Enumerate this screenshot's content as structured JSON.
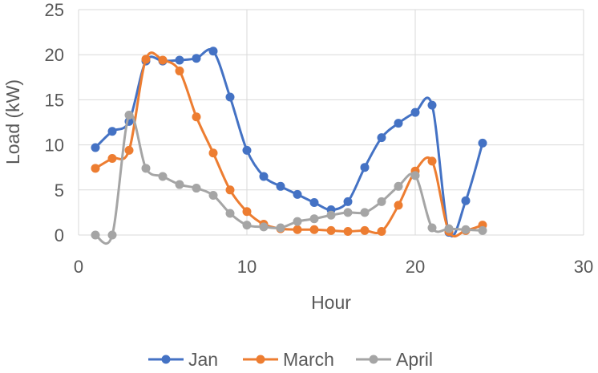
{
  "chart_data": {
    "type": "line",
    "xlabel": "Hour",
    "ylabel": "Load (kW)",
    "xlim": [
      0,
      30
    ],
    "ylim": [
      0,
      25
    ],
    "xticks": [
      0,
      10,
      20,
      30
    ],
    "yticks": [
      0,
      5,
      10,
      15,
      20,
      25
    ],
    "grid": true,
    "legend_position": "bottom",
    "series": [
      {
        "name": "Jan",
        "color": "#4472C4",
        "x": [
          1,
          2,
          3,
          4,
          5,
          6,
          7,
          8,
          9,
          10,
          11,
          12,
          13,
          14,
          15,
          16,
          17,
          18,
          19,
          20,
          21,
          22,
          23,
          24
        ],
        "y": [
          9.7,
          11.5,
          12.6,
          19.3,
          19.3,
          19.4,
          19.6,
          20.4,
          15.3,
          9.4,
          6.5,
          5.4,
          4.5,
          3.6,
          2.8,
          3.7,
          7.5,
          10.8,
          12.4,
          13.6,
          14.4,
          0.3,
          3.8,
          10.2
        ]
      },
      {
        "name": "March",
        "color": "#ED7D31",
        "x": [
          1,
          2,
          3,
          4,
          5,
          6,
          7,
          8,
          9,
          10,
          11,
          12,
          13,
          14,
          15,
          16,
          17,
          18,
          19,
          20,
          21,
          22,
          23,
          24
        ],
        "y": [
          7.4,
          8.5,
          9.4,
          19.5,
          19.4,
          18.2,
          13.1,
          9.1,
          5.0,
          2.6,
          1.2,
          0.7,
          0.6,
          0.6,
          0.5,
          0.4,
          0.5,
          0.4,
          3.3,
          7.1,
          8.2,
          0.4,
          0.5,
          1.1
        ]
      },
      {
        "name": "April",
        "color": "#A5A5A5",
        "x": [
          1,
          2,
          3,
          4,
          5,
          6,
          7,
          8,
          9,
          10,
          11,
          12,
          13,
          14,
          15,
          16,
          17,
          18,
          19,
          20,
          21,
          22,
          23,
          24
        ],
        "y": [
          0.0,
          0.0,
          13.3,
          7.4,
          6.5,
          5.6,
          5.2,
          4.4,
          2.4,
          1.1,
          0.9,
          0.8,
          1.5,
          1.8,
          2.2,
          2.5,
          2.5,
          3.7,
          5.4,
          6.6,
          0.8,
          0.7,
          0.6,
          0.5
        ]
      }
    ]
  }
}
